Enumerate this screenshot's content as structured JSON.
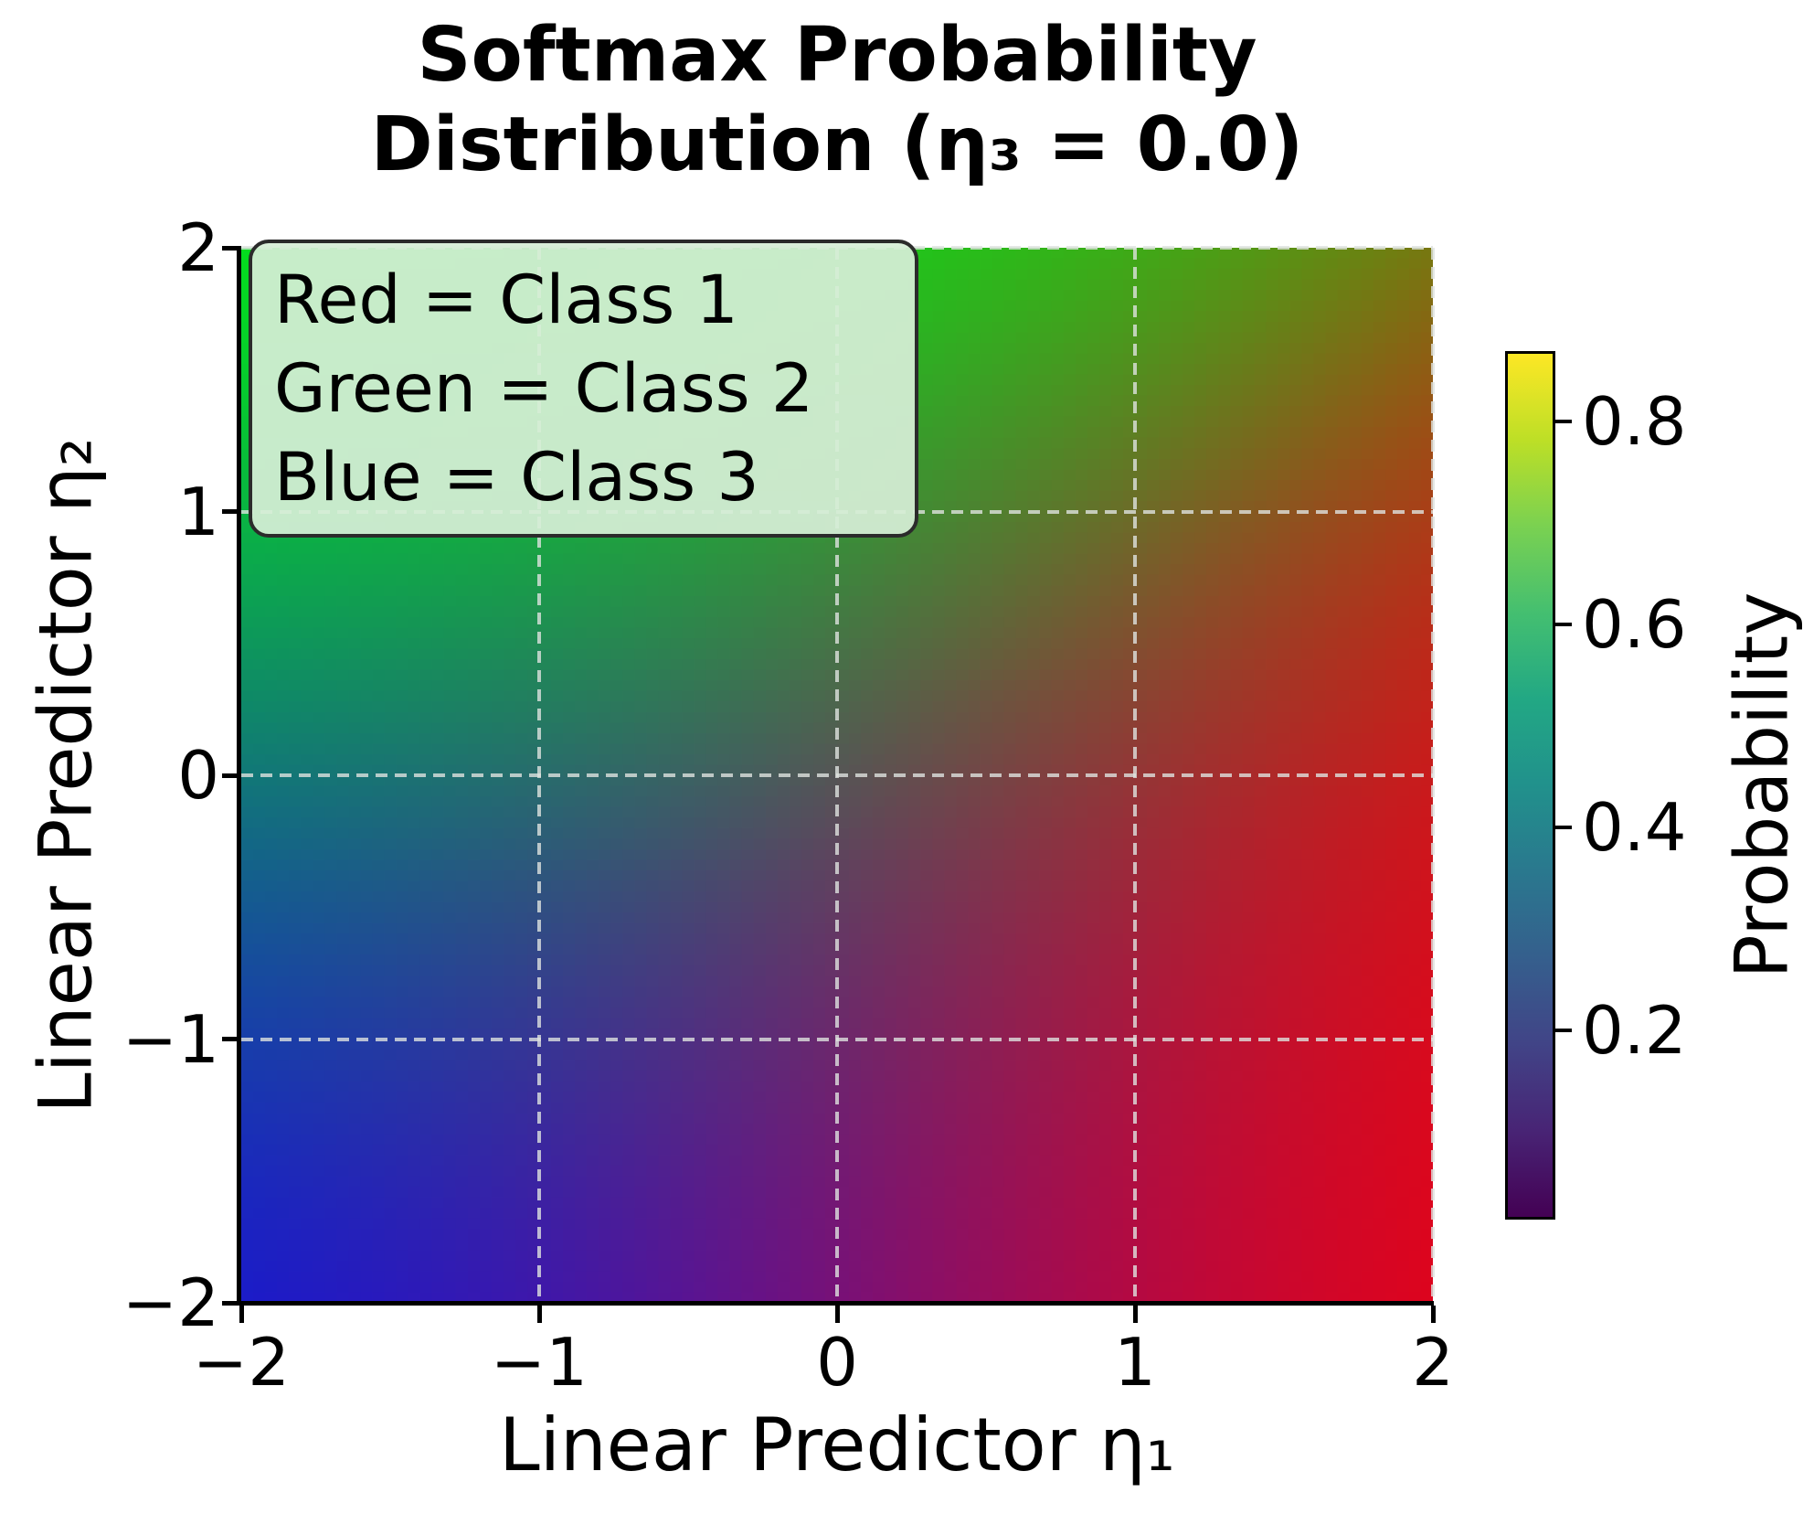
{
  "title": {
    "line1": "Softmax Probability",
    "line2": "Distribution (η₃ = 0.0)"
  },
  "axes": {
    "xlabel": "Linear Predictor η₁",
    "ylabel": "Linear Predictor η₂",
    "x_tick_labels": [
      "−2",
      "−1",
      "0",
      "1",
      "2"
    ],
    "y_tick_labels": [
      "−2",
      "−1",
      "0",
      "1",
      "2"
    ]
  },
  "legend": {
    "lines": [
      "Red = Class 1",
      "Green = Class 2",
      "Blue = Class 3"
    ],
    "background_color": "#d6eed6",
    "border_color": "#2b2b2b"
  },
  "colors": {
    "spine": "#000000",
    "gridline": "#dee2df",
    "figure_background": "#ffffff"
  },
  "chart_data": {
    "type": "heatmap",
    "title": "Softmax Probability Distribution (η₃ = 0.0)",
    "xlabel": "Linear Predictor η₁",
    "ylabel": "Linear Predictor η₂",
    "x_range": [
      -2,
      2
    ],
    "y_range": [
      -2,
      2
    ],
    "x_ticks": [
      -2,
      -1,
      0,
      1,
      2
    ],
    "y_ticks": [
      -2,
      -1,
      0,
      1,
      2
    ],
    "grid": true,
    "grid_style": "dashed",
    "resolution": 100,
    "eta3": 0.0,
    "encoding": "pixel RGB = (P1, P2, P3) where (P1,P2,P3) = softmax(η₁, η₂, η₃)",
    "corner_probabilities": {
      "eta1_-2_eta2_-2": [
        0.107,
        0.107,
        0.787
      ],
      "eta1_2_eta2_-2": [
        0.867,
        0.016,
        0.117
      ],
      "eta1_-2_eta2_2": [
        0.016,
        0.867,
        0.117
      ],
      "eta1_2_eta2_2": [
        0.468,
        0.468,
        0.063
      ],
      "eta1_0_eta2_0": [
        0.333,
        0.333,
        0.333
      ]
    },
    "colorbar": {
      "label": "Probability",
      "cmap": "viridis",
      "vmin": 0.016,
      "vmax": 0.867,
      "ticks": [
        0.2,
        0.4,
        0.6,
        0.8
      ],
      "tick_labels": [
        "0.2",
        "0.4",
        "0.6",
        "0.8"
      ],
      "viridis_stops": [
        "#440154",
        "#482475",
        "#414487",
        "#355f8d",
        "#2a788e",
        "#21918c",
        "#22a884",
        "#44bf70",
        "#7ad151",
        "#bddf26",
        "#fde725"
      ]
    }
  }
}
